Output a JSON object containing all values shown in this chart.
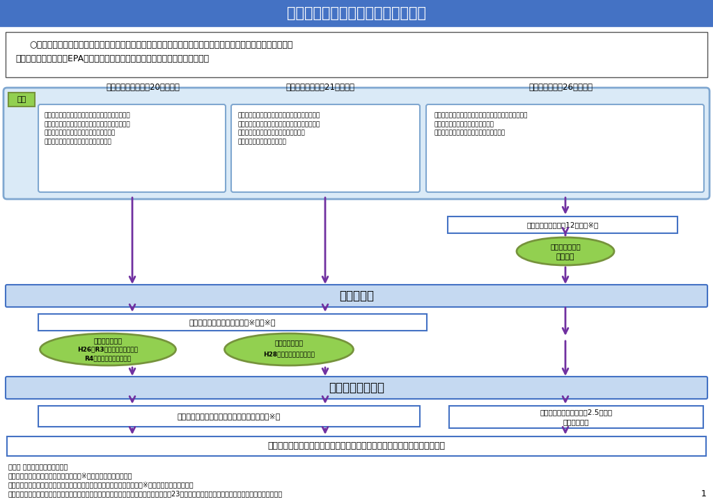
{
  "title": "経済連携協定に基づく受入れの枠組",
  "title_bg": "#4472C4",
  "title_text_color": "#FFFFFF",
  "bg_color": "#FFFFFF",
  "intro_line1": "○　候補者の受入れは、看護・介護分野の労働力不足への対応ではなく、二国間の経済活動の連携の強化の観点",
  "intro_line2": "から、経済連携協定（EPA）に基づき、公的な枠組で特例的に行うものである。",
  "countries": [
    "インドネシア（平成20年度～）",
    "フィリピン（平成21年度～）",
    "ベトナム（平成26年度～）"
  ],
  "yoken_label": "要件",
  "indonesia_text": "（看護）インドネシアの看護師資格＋実務経験２年\n（介護）「高等教育機関（３年以上）卒業＋インド\nネシア政府による介護士認定」又は「イン\nドネシアの看護学校（３年以上）卒業」",
  "philippines_text": "（看護）フィリピンの看護師資格＋実務経験３年\n（介護）「４年制大学卒業＋フィリピン政府によ\nる介護士認定」又は「フィリピンの看護\n学校（学士）（４年）卒業」",
  "vietnam_text": "（看護）３年制又は４年制の看護課程修了＋ベトナムの\n　　　　看護師資格＋実務経験２年\n（介護）３年制又は４年制の看護課程修了",
  "pre_visit_vietnam": "訪日前日本語研修（12か月）※１",
  "jlpt_n3_line1": "日本語能力試験",
  "jlpt_n3_line2": "Ｎ３以上",
  "matching": "マッチング",
  "pre_visit_indo_phi": "訪日前日本語研修（６か月）※１，※２",
  "jlpt_n4_indo_line1": "日本語能力試験",
  "jlpt_n4_indo_line2": "H26～R3年度　Ｎ５程度以上",
  "jlpt_n4_indo_line3": "R4年度～　Ｎ４程度以上",
  "jlpt_n5_phi_line1": "日本語能力試験",
  "jlpt_n5_phi_line2": "H28年度～　Ｎ５程度以上",
  "entry": "入国【特定活動】",
  "post_visit_indo_phi": "訪日後日本語等研修（６か月）【特定活動】※１",
  "post_visit_vietnam_line1": "訪日後日本語等研修（約2.5か月）",
  "post_visit_vietnam_line2": "【特定活動】",
  "final_box": "受入れ施設（病院・介護施設）で雇用契約に基づき就労・研修【特定活動】",
  "note1": "注　【 】内は在留資格を示す。",
  "note2": "注　日本語能力試験Ｎ２以上の候補者は※１の日本語研修を免除。",
  "note3": "　　また、一定期間内に日本語能力試験Ｎ３又はＮ４を取得した候補者は※２の日本語研修を免除。",
  "note4": "注　フィリピン及びベトナムにおいては上記の他に就学コースがある（フィリピンは平成23年度より、ベトナムは入国当初より受入れ実績なし）。",
  "page_num": "1",
  "arrow_color": "#7030A0",
  "box_border_color": "#4472C4",
  "light_blue_fill": "#C5D9F1",
  "outer_box_fill": "#DBE8F5",
  "green_fill": "#92D050",
  "green_edge": "#76933C"
}
